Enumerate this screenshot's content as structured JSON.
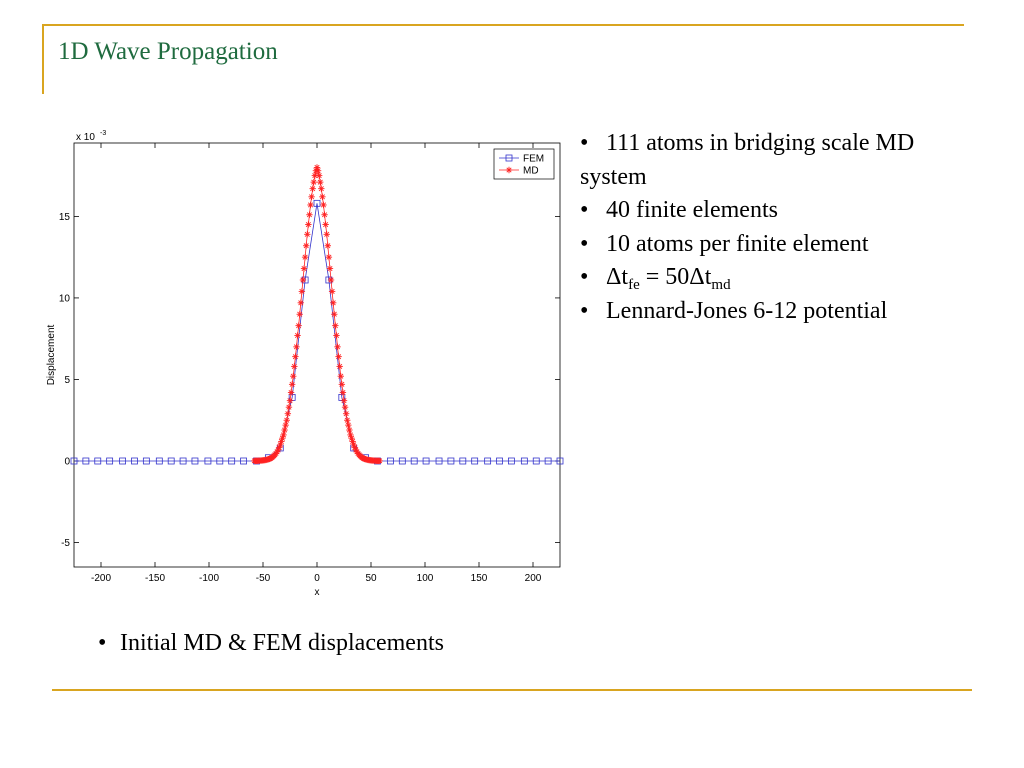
{
  "slide": {
    "title": "1D Wave Propagation",
    "bullets": [
      "111 atoms in bridging scale MD",
      "system",
      "40 finite elements",
      "10 atoms per finite element"
    ],
    "dt_bullet": {
      "delta1": "Δt",
      "sub1": "fe",
      "mid": " = 50Δt",
      "sub2": "md"
    },
    "last_bullet": "Lennard-Jones 6-12 potential",
    "bullet_char": "•",
    "caption": "Initial MD & FEM displacements"
  },
  "chart_data": {
    "type": "line",
    "xlabel": "x",
    "ylabel": "Displacement",
    "y_multiplier_label": "x 10",
    "y_multiplier_exp": "-3",
    "xlim": [
      -225,
      225
    ],
    "ylim": [
      -6.5,
      19.5
    ],
    "xticks": [
      -200,
      -150,
      -100,
      -50,
      0,
      50,
      100,
      150,
      200
    ],
    "yticks": [
      -5,
      0,
      5,
      10,
      15
    ],
    "legend_position": "top-right",
    "series": [
      {
        "name": "FEM",
        "color": "#3333cc",
        "marker": "square",
        "x": [
          -225,
          -214,
          -203,
          -192,
          -180,
          -169,
          -158,
          -146,
          -135,
          -124,
          -113,
          -101,
          -90,
          -79,
          -68,
          -56,
          -45,
          -34,
          -23,
          -11,
          0,
          11,
          23,
          34,
          45,
          56,
          68,
          79,
          90,
          101,
          113,
          124,
          135,
          146,
          158,
          169,
          180,
          192,
          203,
          214,
          225
        ],
        "y": [
          0,
          0,
          0,
          0,
          0,
          0,
          0,
          0,
          0,
          0,
          0,
          0,
          0,
          0,
          0,
          0,
          0.2,
          0.8,
          3.9,
          11.1,
          15.8,
          11.1,
          3.9,
          0.8,
          0.2,
          0,
          0,
          0,
          0,
          0,
          0,
          0,
          0,
          0,
          0,
          0,
          0,
          0,
          0,
          0,
          0
        ]
      },
      {
        "name": "MD",
        "color": "#ff2222",
        "marker": "star",
        "x": [
          -58,
          -57,
          -56,
          -55,
          -54,
          -53,
          -52,
          -51,
          -50,
          -49,
          -48,
          -47,
          -46,
          -45,
          -44,
          -43,
          -42,
          -41,
          -40,
          -39,
          -38,
          -37,
          -36,
          -35,
          -34,
          -33,
          -32,
          -31,
          -30,
          -29,
          -28,
          -27,
          -26,
          -25,
          -24,
          -23,
          -22,
          -21,
          -20,
          -19,
          -18,
          -17,
          -16,
          -15,
          -14,
          -13,
          -12,
          -11,
          -10,
          -9,
          -8,
          -7,
          -6,
          -5,
          -4,
          -3,
          -2,
          -1,
          0,
          1,
          2,
          3,
          4,
          5,
          6,
          7,
          8,
          9,
          10,
          11,
          12,
          13,
          14,
          15,
          16,
          17,
          18,
          19,
          20,
          21,
          22,
          23,
          24,
          25,
          26,
          27,
          28,
          29,
          30,
          31,
          32,
          33,
          34,
          35,
          36,
          37,
          38,
          39,
          40,
          41,
          42,
          43,
          44,
          45,
          46,
          47,
          48,
          49,
          50,
          51,
          52,
          53,
          54,
          55,
          56,
          57,
          58
        ],
        "y": [
          0.01,
          0.01,
          0.01,
          0.01,
          0.02,
          0.02,
          0.03,
          0.03,
          0.04,
          0.05,
          0.06,
          0.07,
          0.09,
          0.11,
          0.13,
          0.16,
          0.2,
          0.25,
          0.31,
          0.38,
          0.46,
          0.56,
          0.68,
          0.82,
          0.99,
          1.2,
          1.4,
          1.6,
          1.9,
          2.2,
          2.5,
          2.9,
          3.3,
          3.7,
          4.2,
          4.7,
          5.2,
          5.8,
          6.4,
          7.0,
          7.7,
          8.3,
          9.0,
          9.7,
          10.4,
          11.1,
          11.8,
          12.5,
          13.2,
          13.9,
          14.5,
          15.1,
          15.7,
          16.2,
          16.7,
          17.1,
          17.5,
          17.8,
          18.0,
          17.8,
          17.5,
          17.1,
          16.7,
          16.2,
          15.7,
          15.1,
          14.5,
          13.9,
          13.2,
          12.5,
          11.8,
          11.1,
          10.4,
          9.7,
          9.0,
          8.3,
          7.7,
          7.0,
          6.4,
          5.8,
          5.2,
          4.7,
          4.2,
          3.7,
          3.3,
          2.9,
          2.5,
          2.2,
          1.9,
          1.6,
          1.4,
          1.2,
          0.99,
          0.82,
          0.68,
          0.56,
          0.46,
          0.38,
          0.31,
          0.25,
          0.2,
          0.16,
          0.13,
          0.11,
          0.09,
          0.07,
          0.06,
          0.05,
          0.04,
          0.03,
          0.03,
          0.02,
          0.02,
          0.01,
          0.01,
          0.01,
          0.01
        ]
      }
    ]
  }
}
